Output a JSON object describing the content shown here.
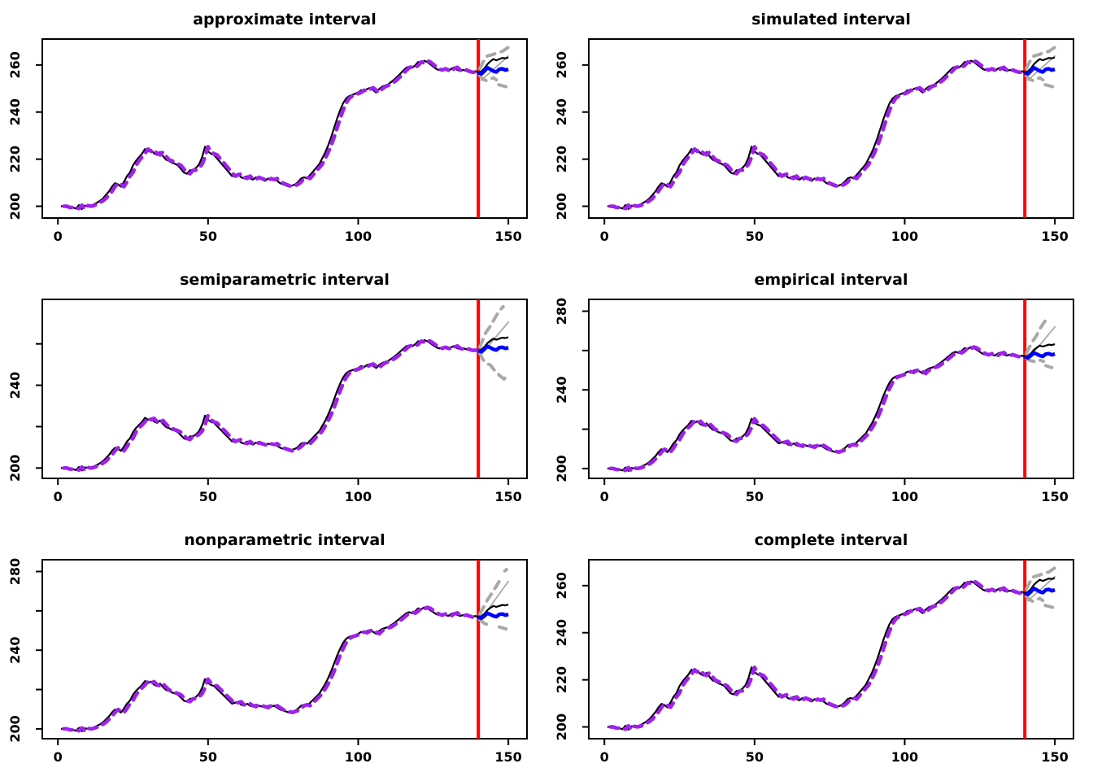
{
  "figure": {
    "background": "#FFFFFF",
    "description": "2x3 grid of forecast interval comparison plots"
  },
  "colors": {
    "actual_black": "#000000",
    "fitted_purple": "#A020F0",
    "forecast_blue": "#0000FF",
    "origin_red": "#FF0000",
    "interval_gray": "#A9A9A9",
    "axis_black": "#000000"
  },
  "chart_data": {
    "type": "line",
    "layout": {
      "rows": 3,
      "cols": 2,
      "legend": "none",
      "grid": "off"
    },
    "x_ticks": [
      0,
      50,
      100,
      150
    ],
    "x_tick_labels": [
      "0",
      "50",
      "100",
      "150"
    ],
    "xlim": [
      -5.2,
      156.2
    ],
    "forecast_origin_x": 140,
    "series_shared": {
      "x_start": 1,
      "actual": [
        200,
        200,
        199.5,
        199.5,
        199.5,
        199,
        200.5,
        198.8,
        200.3,
        200,
        200.3,
        200.8,
        201.5,
        202.3,
        203.3,
        204.8,
        206.3,
        208.3,
        209.8,
        209.3,
        208.3,
        210.3,
        212.8,
        214.3,
        217.3,
        219.3,
        220.8,
        222.3,
        224.3,
        223.3,
        224,
        222.5,
        221.8,
        223,
        221.3,
        219.8,
        219.3,
        218.5,
        218,
        217.3,
        215.8,
        214.3,
        213.8,
        215.3,
        215.3,
        216.3,
        217.8,
        220.8,
        225.3,
        223.3,
        222.3,
        221.8,
        220.3,
        218.8,
        217.3,
        215.8,
        214.3,
        212.8,
        213.3,
        213.8,
        212.3,
        211.8,
        212.8,
        211.8,
        211.3,
        212.3,
        211.8,
        211.3,
        210.8,
        211.8,
        211.3,
        211.8,
        210.8,
        209.8,
        209.3,
        208.8,
        208.3,
        208.8,
        209.3,
        210.3,
        211.8,
        212.3,
        211.8,
        213.3,
        214.8,
        216.3,
        217.8,
        220.3,
        222.8,
        225.8,
        229.3,
        233.3,
        237.3,
        240.8,
        243.8,
        245.8,
        246.8,
        247.3,
        247.8,
        248.3,
        249.3,
        248.8,
        249.8,
        250.3,
        249.3,
        248.3,
        249.8,
        250.8,
        251.3,
        251.8,
        252.8,
        253.8,
        255,
        256.3,
        257.6,
        258.8,
        259.3,
        258.8,
        259.8,
        261.3,
        260.8,
        261.8,
        261.3,
        260.3,
        259.3,
        258.3,
        257.8,
        258.4,
        257.9,
        257.4,
        258.4,
        259,
        257.9,
        257.4,
        257.9,
        257.4,
        256.9,
        256.9,
        257.4,
        256.7
      ],
      "fitted": {
        "kind": "one-step-ahead fit",
        "lag": 1,
        "line_style": "dashed",
        "color_key": "fitted_purple"
      },
      "future_x_start": 140,
      "future_actual": [
        256.7,
        257.3,
        258.5,
        260.3,
        261.5,
        262.5,
        262,
        262.5,
        263,
        262.8,
        263.2
      ],
      "forecast_mean": [
        256.7,
        256.2,
        257.4,
        258.8,
        258.2,
        257.4,
        257,
        258.2,
        258.4,
        257.8,
        258.2
      ]
    },
    "panels": [
      {
        "title": "approximate interval",
        "ylim": [
          195,
          271
        ],
        "y_ticks": [
          200,
          220,
          240,
          260
        ],
        "y_tick_labels": [
          "200",
          "220",
          "240",
          "260"
        ],
        "fan": [
          {
            "style": "dashed",
            "pts": [
              [
                140.5,
                258.5
              ],
              [
                141.5,
                261
              ],
              [
                142.5,
                263.5
              ],
              [
                143.5,
                264
              ],
              [
                145,
                264.5
              ],
              [
                146.5,
                265.3
              ],
              [
                148,
                265.8
              ],
              [
                150,
                267.5
              ]
            ]
          },
          {
            "style": "solid",
            "pts": [
              [
                141,
                253.5
              ],
              [
                150,
                263.8
              ]
            ]
          },
          {
            "style": "dashed",
            "pts": [
              [
                140.5,
                255.5
              ],
              [
                141.5,
                254
              ],
              [
                142.7,
                253.3
              ],
              [
                143.8,
                253.9
              ],
              [
                145,
                254.6
              ],
              [
                146,
                253.7
              ]
            ]
          },
          {
            "style": "dashed",
            "pts": [
              [
                146.8,
                251.6
              ],
              [
                149.2,
                250.8
              ]
            ]
          }
        ]
      },
      {
        "title": "simulated interval",
        "ylim": [
          195,
          271
        ],
        "y_ticks": [
          200,
          220,
          240,
          260
        ],
        "y_tick_labels": [
          "200",
          "220",
          "240",
          "260"
        ],
        "fan": [
          {
            "style": "dashed",
            "pts": [
              [
                140.5,
                258.5
              ],
              [
                141.5,
                261
              ],
              [
                142.5,
                263.5
              ],
              [
                143.5,
                264
              ],
              [
                145,
                264.5
              ],
              [
                146.5,
                265.3
              ],
              [
                148,
                265.8
              ],
              [
                150,
                267.5
              ]
            ]
          },
          {
            "style": "solid",
            "pts": [
              [
                141,
                253.5
              ],
              [
                150,
                263.8
              ]
            ]
          },
          {
            "style": "dashed",
            "pts": [
              [
                140.5,
                255.5
              ],
              [
                141.5,
                254
              ],
              [
                142.7,
                253.3
              ],
              [
                143.8,
                253.9
              ],
              [
                145,
                254.6
              ],
              [
                146,
                253.7
              ]
            ]
          },
          {
            "style": "dashed",
            "pts": [
              [
                146.8,
                251.6
              ],
              [
                149.2,
                250.8
              ]
            ]
          }
        ]
      },
      {
        "title": "semiparametric interval",
        "ylim": [
          195,
          281.5
        ],
        "y_ticks": [
          200,
          220,
          240,
          260
        ],
        "y_tick_labels": [
          "200",
          "",
          "240",
          ""
        ],
        "fan": [
          {
            "style": "dashed",
            "pts": [
              [
                140.5,
                258.5
              ],
              [
                141.5,
                262
              ],
              [
                142.5,
                265.5
              ],
              [
                144,
                268.5
              ],
              [
                145.5,
                272.5
              ],
              [
                147,
                276
              ],
              [
                148.3,
                278
              ]
            ]
          },
          {
            "style": "solid",
            "pts": [
              [
                141,
                255
              ],
              [
                150,
                270.5
              ]
            ]
          },
          {
            "style": "dashed",
            "pts": [
              [
                140.5,
                255.5
              ],
              [
                141.5,
                252.5
              ],
              [
                142.7,
                250.5
              ],
              [
                144,
                249.8
              ],
              [
                145.5,
                247
              ],
              [
                147,
                244.8
              ],
              [
                148.5,
                243
              ],
              [
                150,
                245
              ]
            ]
          }
        ]
      },
      {
        "title": "empirical interval",
        "ylim": [
          195,
          286
        ],
        "y_ticks": [
          200,
          220,
          240,
          260,
          280
        ],
        "y_tick_labels": [
          "200",
          "",
          "240",
          "",
          "280"
        ],
        "fan": [
          {
            "style": "dashed",
            "pts": [
              [
                140.5,
                258.5
              ],
              [
                141.5,
                261.5
              ],
              [
                142.5,
                264.5
              ],
              [
                143.7,
                267
              ],
              [
                145,
                271
              ],
              [
                146.5,
                274.5
              ],
              [
                147.8,
                276.5
              ]
            ]
          },
          {
            "style": "solid",
            "pts": [
              [
                141,
                255.5
              ],
              [
                150,
                272
              ]
            ]
          },
          {
            "style": "dashed",
            "pts": [
              [
                140.5,
                255.8
              ],
              [
                142,
                254.8
              ],
              [
                143.5,
                254.3
              ],
              [
                145,
                255.1
              ],
              [
                146.2,
                254.5
              ]
            ]
          },
          {
            "style": "dashed",
            "pts": [
              [
                147,
                252.3
              ],
              [
                149,
                251.3
              ]
            ]
          }
        ]
      },
      {
        "title": "nonparametric interval",
        "ylim": [
          195,
          286
        ],
        "y_ticks": [
          200,
          220,
          240,
          260,
          280
        ],
        "y_tick_labels": [
          "200",
          "",
          "240",
          "",
          "280"
        ],
        "fan": [
          {
            "style": "dashed",
            "pts": [
              [
                140.5,
                258.5
              ],
              [
                141.8,
                262
              ],
              [
                143,
                265.5
              ],
              [
                144.5,
                269
              ],
              [
                146,
                272.5
              ],
              [
                147.5,
                276.5
              ]
            ]
          },
          {
            "style": "dashed",
            "pts": [
              [
                148.8,
                280.3
              ],
              [
                149.4,
                281
              ]
            ]
          },
          {
            "style": "solid",
            "pts": [
              [
                141,
                256
              ],
              [
                150,
                275
              ]
            ]
          },
          {
            "style": "dashed",
            "pts": [
              [
                140.5,
                255.5
              ],
              [
                141.8,
                253.8
              ],
              [
                143,
                253
              ],
              [
                144.8,
                253.4
              ]
            ]
          },
          {
            "style": "dashed",
            "pts": [
              [
                147,
                251.8
              ],
              [
                149.2,
                250.8
              ]
            ]
          }
        ]
      },
      {
        "title": "complete interval",
        "ylim": [
          195,
          271
        ],
        "y_ticks": [
          200,
          220,
          240,
          260
        ],
        "y_tick_labels": [
          "200",
          "220",
          "240",
          "260"
        ],
        "fan": [
          {
            "style": "dashed",
            "pts": [
              [
                140.5,
                258.5
              ],
              [
                141.5,
                261
              ],
              [
                142.5,
                263.5
              ],
              [
                143.5,
                264
              ],
              [
                145,
                264.5
              ],
              [
                146.5,
                265.3
              ],
              [
                148,
                265.8
              ],
              [
                150,
                267.5
              ]
            ]
          },
          {
            "style": "solid",
            "pts": [
              [
                141,
                253.5
              ],
              [
                150,
                263.8
              ]
            ]
          },
          {
            "style": "dashed",
            "pts": [
              [
                140.5,
                255.5
              ],
              [
                141.5,
                254
              ],
              [
                142.7,
                253.3
              ],
              [
                143.8,
                253.9
              ],
              [
                145,
                254.6
              ],
              [
                146,
                253.7
              ]
            ]
          },
          {
            "style": "dashed",
            "pts": [
              [
                146.8,
                251.6
              ],
              [
                149.2,
                250.8
              ]
            ]
          }
        ]
      }
    ]
  }
}
